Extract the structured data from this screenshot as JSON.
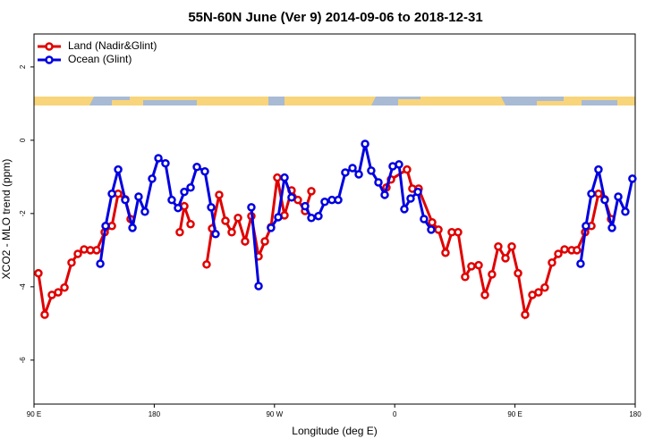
{
  "chart_data": {
    "type": "line",
    "title": "55N-60N June (Ver 9)   2014-09-06 to 2018-12-31",
    "x_label": "Longitude (deg E)",
    "y_label": "XCO2 - MLO trend (ppm)",
    "xlim": [
      90,
      540
    ],
    "xticks": [
      {
        "value": 90,
        "label": "90 E"
      },
      {
        "value": 180,
        "label": "180"
      },
      {
        "value": 270,
        "label": "90 W"
      },
      {
        "value": 360,
        "label": "0"
      },
      {
        "value": 450,
        "label": "90 E"
      },
      {
        "value": 540,
        "label": "180"
      }
    ],
    "ylim": [
      -7.2,
      2.9
    ],
    "yticks": [
      -6,
      -4,
      -2,
      0,
      2
    ],
    "legend": "top-left",
    "series": [
      {
        "name": "Land (Nadir&Glint)",
        "color": "#e00000",
        "x": [
          93.3,
          98.0,
          103.4,
          108.1,
          112.8,
          118.1,
          122.8,
          127.5,
          132.2,
          136.9,
          142.9,
          148.3,
          153.0,
          158.3,
          162.3,
          null,
          199.1,
          202.5,
          207.2,
          null,
          219.2,
          223.3,
          228.6,
          233.3,
          238.0,
          242.7,
          248.0,
          252.7,
          258.1,
          262.8,
          267.4,
          272.1,
          277.5,
          282.8,
          287.5,
          292.9,
          297.6,
          null,
          353.8,
          357.2,
          369.2,
          373.2,
          377.9,
          388.0,
          392.7,
          398.0,
          402.7,
          407.4,
          412.7,
          417.4,
          422.8,
          427.5,
          432.8,
          437.5,
          442.9,
          447.6,
          452.3,
          457.6,
          463.0,
          467.6,
          472.3,
          477.7,
          482.4,
          487.1,
          492.4,
          496.4,
          502.5,
          507.2,
          512.5,
          517.2,
          521.9
        ],
        "values": [
          -3.63,
          -4.76,
          -4.22,
          -4.15,
          -4.02,
          -3.34,
          -3.1,
          -2.98,
          -3.0,
          -3.0,
          -2.51,
          -2.34,
          -1.46,
          -1.61,
          -2.15,
          null,
          -2.51,
          -1.8,
          -2.29,
          null,
          -3.39,
          -2.41,
          -1.49,
          -2.2,
          -2.51,
          -2.12,
          -2.76,
          -2.07,
          -3.17,
          -2.76,
          -2.37,
          -1.02,
          -2.05,
          -1.37,
          -1.63,
          -1.93,
          -1.39,
          null,
          -1.29,
          -1.07,
          -0.8,
          -1.32,
          -1.32,
          -2.24,
          -2.44,
          -3.07,
          -2.51,
          -2.51,
          -3.73,
          -3.44,
          -3.41,
          -4.22,
          -3.66,
          -2.9,
          -3.22,
          -2.9,
          -3.63,
          -4.76,
          -4.22,
          -4.15,
          -4.02,
          -3.34,
          -3.1,
          -2.98,
          -3.0,
          -3.0,
          -2.51,
          -2.34,
          -1.46,
          -1.61,
          -2.15
        ]
      },
      {
        "name": "Ocean (Glint)",
        "color": "#0000e0",
        "x": [
          139.6,
          143.6,
          148.3,
          153.0,
          158.3,
          163.7,
          168.3,
          173.0,
          178.4,
          183.1,
          188.4,
          193.1,
          197.8,
          202.5,
          207.2,
          211.9,
          217.9,
          222.6,
          225.9,
          null,
          252.7,
          258.1,
          null,
          267.4,
          272.8,
          277.5,
          282.8,
          null,
          292.9,
          297.6,
          302.9,
          307.6,
          313.0,
          317.7,
          323.0,
          328.4,
          333.1,
          337.8,
          342.4,
          347.8,
          352.5,
          358.5,
          363.2,
          367.2,
          371.9,
          377.3,
          381.9,
          387.3,
          null,
          499.1,
          503.1,
          507.2,
          512.5,
          517.2,
          522.6,
          527.3,
          532.6,
          537.9
        ],
        "values": [
          -3.37,
          -2.34,
          -1.46,
          -0.8,
          -1.63,
          -2.39,
          -1.54,
          -1.95,
          -1.05,
          -0.49,
          -0.63,
          -1.63,
          -1.85,
          -1.41,
          -1.29,
          -0.73,
          -0.85,
          -1.83,
          -2.56,
          null,
          -1.83,
          -3.98,
          null,
          -2.39,
          -2.1,
          -1.02,
          -1.56,
          null,
          -1.8,
          -2.12,
          -2.07,
          -1.68,
          -1.63,
          -1.63,
          -0.88,
          -0.76,
          -0.93,
          -0.1,
          -0.83,
          -1.15,
          -1.49,
          -0.71,
          -0.66,
          -1.88,
          -1.59,
          -1.41,
          -2.15,
          -2.44,
          null,
          -3.37,
          -2.34,
          -1.46,
          -0.8,
          -1.63,
          -2.39,
          -1.54,
          -1.95,
          -1.05
        ]
      }
    ]
  }
}
